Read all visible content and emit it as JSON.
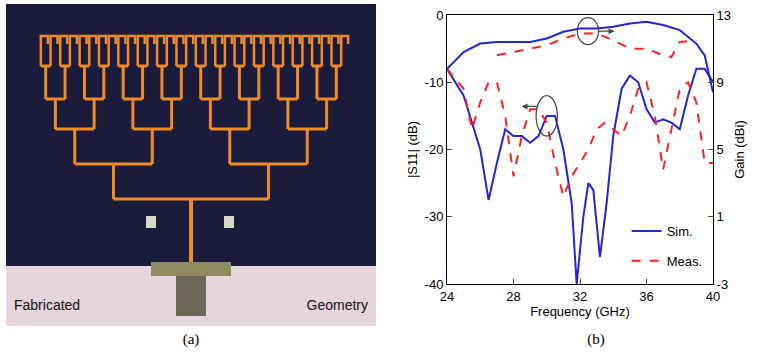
{
  "panel_a": {
    "label": "(a)",
    "texts": [
      "Fabricated",
      "Geometry"
    ]
  },
  "chart_data": {
    "type": "line",
    "label": "(b)",
    "xlabel": "Frequency (GHz)",
    "ylabel": "|S11| (dB)",
    "y2label": "Gain (dBi)",
    "xlim": [
      24,
      40
    ],
    "xticks": [
      24,
      28,
      32,
      36,
      40
    ],
    "ylim": [
      -40,
      0
    ],
    "yticks": [
      -40,
      -30,
      -20,
      -10,
      0
    ],
    "y2lim": [
      -3,
      13
    ],
    "y2ticks": [
      -3,
      1,
      5,
      9,
      13
    ],
    "legend": "lower right",
    "grid": false,
    "series": [
      {
        "name": "Sim.",
        "color": "#2424d8",
        "line_style": "solid",
        "x": [
          24,
          25,
          26,
          26.5,
          27,
          27.5,
          28,
          28.5,
          29,
          29.5,
          30,
          30.5,
          31,
          31.5,
          31.8,
          32.2,
          32.5,
          32.8,
          33.2,
          33.6,
          34,
          34.5,
          35,
          35.5,
          36,
          36.5,
          37,
          37.5,
          38,
          38.5,
          39,
          39.5,
          40
        ],
        "values": [
          -8,
          -12,
          -20,
          -27.5,
          -22,
          -17,
          -18,
          -18,
          -19,
          -18,
          -15,
          -15,
          -20,
          -28,
          -40,
          -30,
          -25,
          -26,
          -36,
          -28,
          -18,
          -11,
          -9,
          -10,
          -14,
          -16,
          -15.5,
          -16,
          -17,
          -12,
          -8,
          -8,
          -10
        ]
      },
      {
        "name": "Meas.",
        "color": "#ff2020",
        "line_style": "dash",
        "x": [
          24,
          25,
          25.5,
          26,
          26.5,
          27,
          27.5,
          28,
          28.5,
          29,
          29.5,
          30,
          30.5,
          31,
          31.5,
          32,
          32.5,
          33,
          33.5,
          34,
          34.5,
          35,
          35.5,
          36,
          36.5,
          37,
          37.5,
          38,
          38.5,
          39,
          39.5,
          40
        ],
        "values": [
          -8,
          -11,
          -17,
          -13,
          -10,
          -10,
          -15,
          -24,
          -18,
          -14,
          -14,
          -16,
          -22,
          -27,
          -24,
          -22,
          -20,
          -17,
          -16,
          -17,
          -18,
          -15,
          -11,
          -10,
          -15,
          -23,
          -17,
          -11,
          -10,
          -13,
          -22,
          -22
        ]
      },
      {
        "name": "Sim.",
        "color": "#2424d8",
        "line_style": "solid",
        "axis": "y2",
        "x": [
          24,
          25,
          26,
          27,
          28,
          29,
          30,
          31,
          32,
          33,
          34,
          35,
          36,
          37,
          38,
          39,
          39.5,
          40
        ],
        "values": [
          9.8,
          10.8,
          11.3,
          11.4,
          11.4,
          11.4,
          11.6,
          12.0,
          12.2,
          12.2,
          12.3,
          12.5,
          12.6,
          12.4,
          12.1,
          11.3,
          10.6,
          8.4
        ]
      },
      {
        "name": "Meas.",
        "color": "#ff2020",
        "line_style": "dash",
        "axis": "y2",
        "x": [
          27,
          28,
          29,
          30,
          31,
          32,
          33,
          34,
          35,
          36,
          37,
          37.5,
          38,
          39
        ],
        "values": [
          10.6,
          10.8,
          11.0,
          11.2,
          11.6,
          11.9,
          11.9,
          11.5,
          11.0,
          11.0,
          10.6,
          10.5,
          11.4,
          11.5
        ]
      }
    ]
  }
}
